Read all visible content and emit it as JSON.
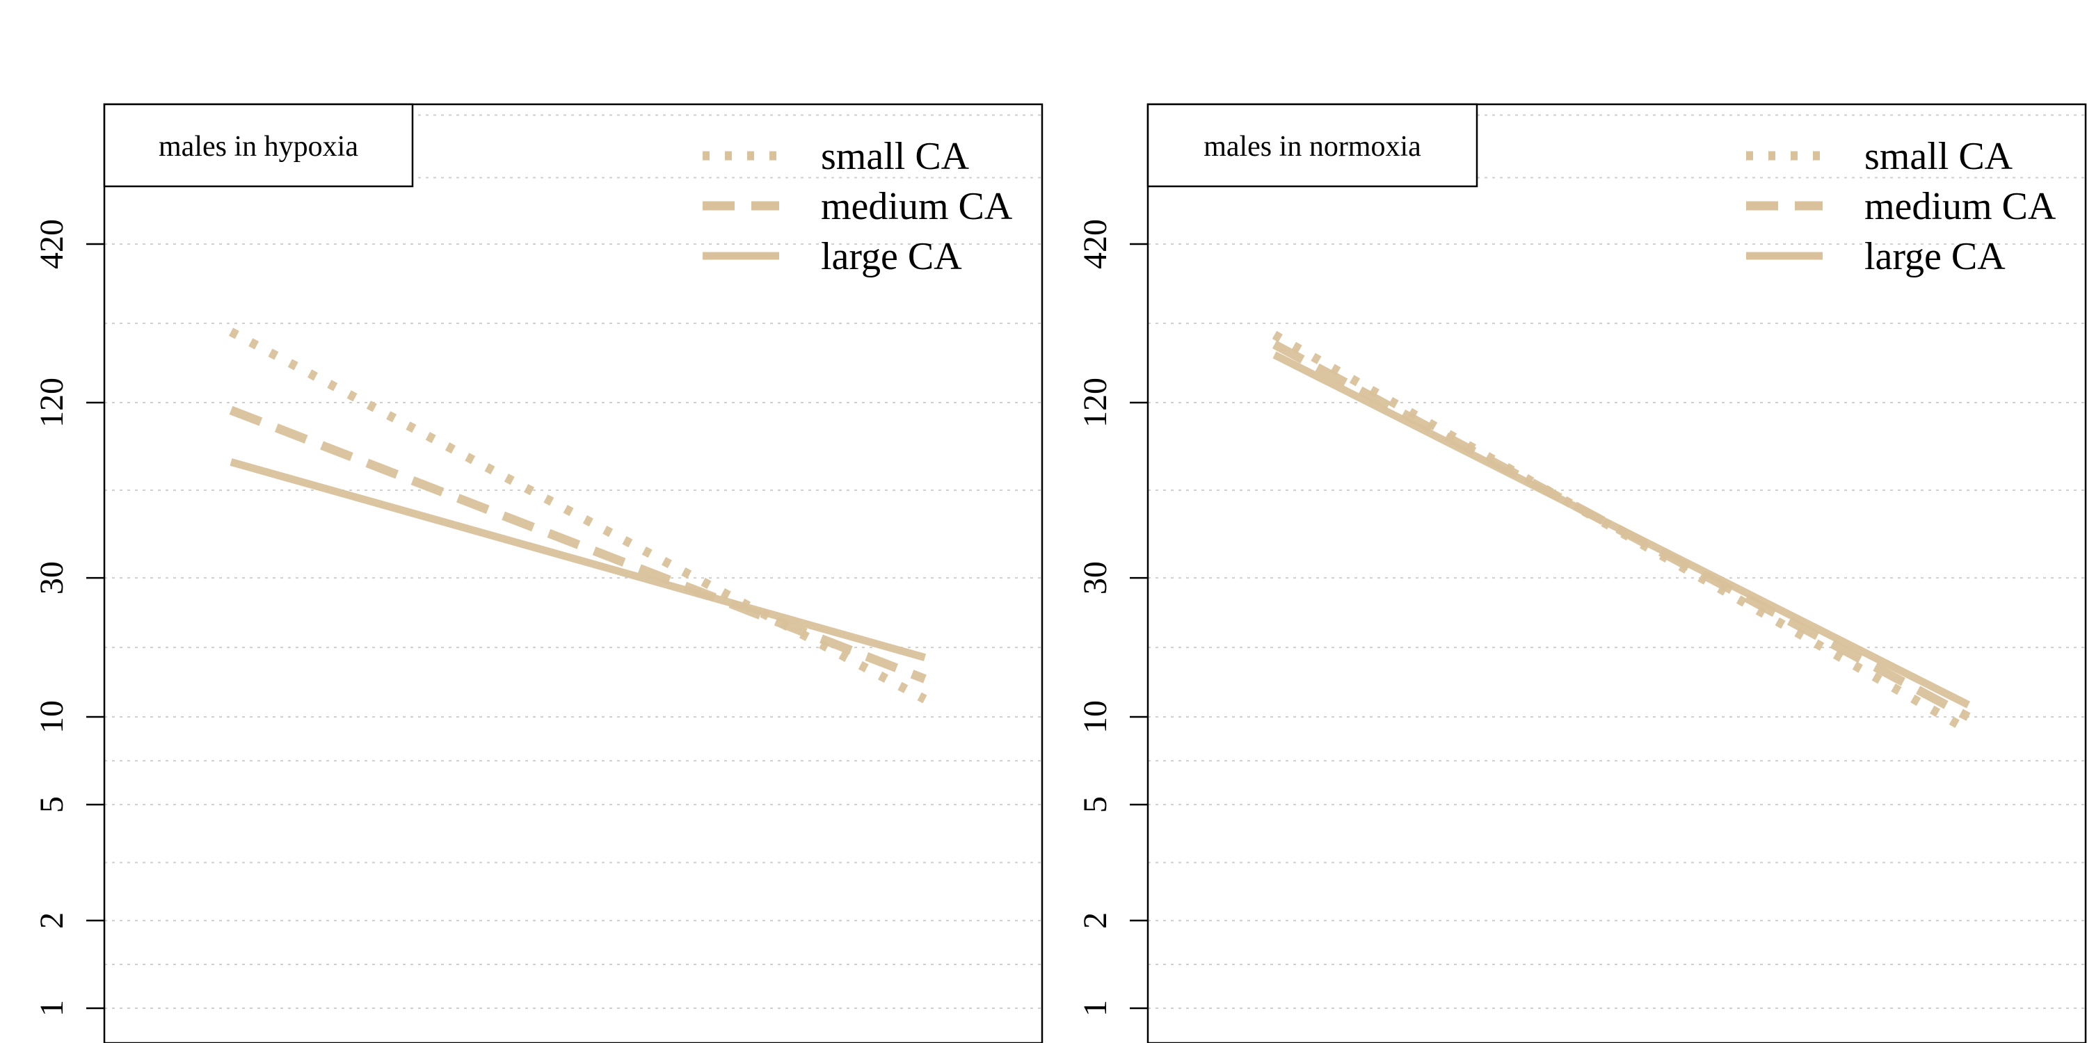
{
  "chart_data": [
    {
      "type": "line",
      "panel_label": "males in hypoxia",
      "y_scale": "log",
      "ylim": [
        1,
        1200
      ],
      "y_ticks": [
        1,
        2,
        5,
        10,
        30,
        120,
        420
      ],
      "y_tick_labels": [
        "1",
        "2",
        "5",
        "10",
        "30",
        "120",
        "420"
      ],
      "grid": true,
      "legend_position": "top-right",
      "x_range": [
        0,
        1
      ],
      "series": [
        {
          "name": "small CA",
          "style": "dotted",
          "color": "#d9c29b",
          "x": [
            0.135,
            0.875
          ],
          "y": [
            210,
            11.5
          ]
        },
        {
          "name": "medium CA",
          "style": "dashed",
          "color": "#d9c29b",
          "x": [
            0.135,
            0.875
          ],
          "y": [
            113,
            13.5
          ]
        },
        {
          "name": "large CA",
          "style": "solid",
          "color": "#d9c29b",
          "x": [
            0.135,
            0.875
          ],
          "y": [
            75,
            16
          ]
        }
      ]
    },
    {
      "type": "line",
      "panel_label": "males in normoxia",
      "y_scale": "log",
      "ylim": [
        1,
        1200
      ],
      "y_ticks": [
        1,
        2,
        5,
        10,
        30,
        120,
        420
      ],
      "y_tick_labels": [
        "1",
        "2",
        "5",
        "10",
        "30",
        "120",
        "420"
      ],
      "grid": true,
      "legend_position": "top-right",
      "x_range": [
        0,
        1
      ],
      "series": [
        {
          "name": "small CA",
          "style": "dotted",
          "color": "#d9c29b",
          "x": [
            0.135,
            0.875
          ],
          "y": [
            205,
            9
          ]
        },
        {
          "name": "medium CA",
          "style": "dashed",
          "color": "#d9c29b",
          "x": [
            0.135,
            0.875
          ],
          "y": [
            190,
            10
          ]
        },
        {
          "name": "large CA",
          "style": "solid",
          "color": "#d9c29b",
          "x": [
            0.135,
            0.875
          ],
          "y": [
            175,
            11
          ]
        }
      ]
    }
  ]
}
